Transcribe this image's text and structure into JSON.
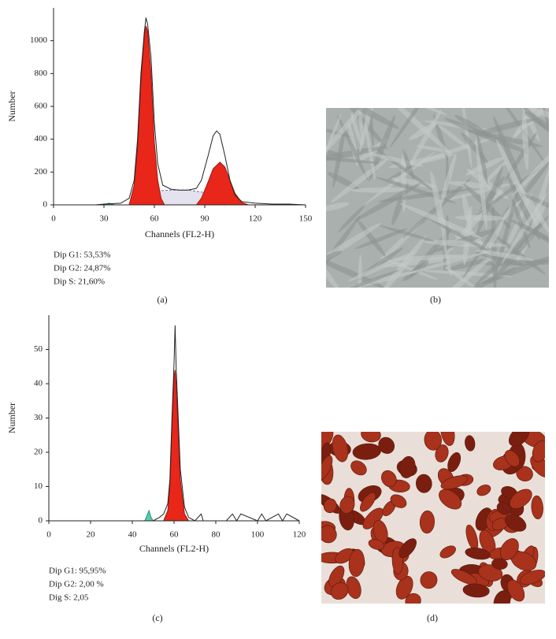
{
  "chart_data": [
    {
      "type": "line",
      "panel_label": "(a)",
      "x_label": "Channels (FL2-H)",
      "y_label": "Number",
      "xlim": [
        0,
        150
      ],
      "xticks": [
        0,
        30,
        60,
        90,
        120,
        150
      ],
      "ylim": [
        0,
        1200
      ],
      "yticks": [
        0,
        200,
        400,
        600,
        800,
        1000
      ],
      "annotations": [
        "Dip G1: 53,53%",
        "Dip G2: 24,87%",
        "Dip S: 21,60%"
      ],
      "series": [
        {
          "color": "#6f6f99",
          "fill": "#e4e2ee",
          "dash": true,
          "x": [
            52,
            55,
            60,
            70,
            80,
            90,
            100,
            110,
            115
          ],
          "values": [
            0,
            60,
            85,
            90,
            90,
            75,
            50,
            20,
            0
          ]
        },
        {
          "color": "#9a1a10",
          "fill": "#e8261a",
          "x": [
            45,
            48,
            50,
            52,
            54,
            55,
            56,
            58,
            60,
            62,
            64,
            66
          ],
          "values": [
            0,
            120,
            350,
            750,
            1030,
            1090,
            1060,
            800,
            380,
            150,
            40,
            0
          ]
        },
        {
          "color": "#9a1a10",
          "fill": "#e8261a",
          "x": [
            85,
            88,
            92,
            95,
            99,
            102,
            105,
            108,
            112,
            116
          ],
          "values": [
            0,
            40,
            140,
            220,
            260,
            230,
            150,
            70,
            15,
            0
          ]
        },
        {
          "color": "#2a8f7a",
          "fill": "#5cc8b0",
          "x": [
            30,
            33,
            36
          ],
          "values": [
            0,
            10,
            0
          ]
        },
        {
          "color": "#222222",
          "x": [
            25,
            30,
            40,
            45,
            48,
            50,
            52,
            54,
            55,
            56,
            58,
            60,
            62,
            65,
            70,
            75,
            80,
            85,
            88,
            92,
            95,
            97,
            99,
            102,
            105,
            108,
            112,
            120,
            130,
            140,
            150
          ],
          "values": [
            0,
            5,
            10,
            40,
            150,
            400,
            800,
            1050,
            1140,
            1100,
            900,
            500,
            250,
            120,
            95,
            90,
            90,
            100,
            150,
            300,
            420,
            450,
            430,
            300,
            150,
            60,
            20,
            10,
            5,
            5,
            0
          ]
        }
      ]
    },
    {
      "type": "line",
      "panel_label": "(c)",
      "x_label": "Channels (FL2-H)",
      "y_label": "Number",
      "xlim": [
        0,
        120
      ],
      "xticks": [
        0,
        20,
        40,
        60,
        80,
        100,
        120
      ],
      "ylim": [
        0,
        60
      ],
      "yticks": [
        0,
        10,
        20,
        30,
        40,
        50
      ],
      "annotations": [
        "Dip G1: 95,95%",
        "Dip G2: 2,00 %",
        "Dig S: 2,05"
      ],
      "series": [
        {
          "color": "#9a1a10",
          "fill": "#e8261a",
          "x": [
            55,
            57,
            58,
            59,
            60,
            60.5,
            61,
            62,
            63,
            65,
            67
          ],
          "values": [
            0,
            3,
            10,
            28,
            42,
            44,
            40,
            26,
            12,
            2,
            0
          ]
        },
        {
          "color": "#2a8f7a",
          "fill": "#5cc8b0",
          "x": [
            46,
            48,
            49,
            50
          ],
          "values": [
            0,
            3,
            1,
            0
          ]
        },
        {
          "color": "#222222",
          "x": [
            45,
            48,
            50,
            53,
            55,
            57,
            58,
            59,
            60,
            60.5,
            61,
            62,
            63,
            65,
            67,
            70,
            73,
            74,
            75,
            85,
            88,
            90,
            92,
            100,
            102,
            104,
            110,
            112,
            114,
            120
          ],
          "values": [
            0,
            0,
            0,
            1,
            2,
            5,
            12,
            30,
            46,
            57,
            45,
            30,
            15,
            4,
            1,
            0,
            2,
            0,
            0,
            0,
            2,
            0,
            2,
            0,
            2,
            0,
            2,
            0,
            2,
            0
          ]
        }
      ]
    }
  ],
  "panels": {
    "b": "(b)",
    "d": "(d)"
  }
}
